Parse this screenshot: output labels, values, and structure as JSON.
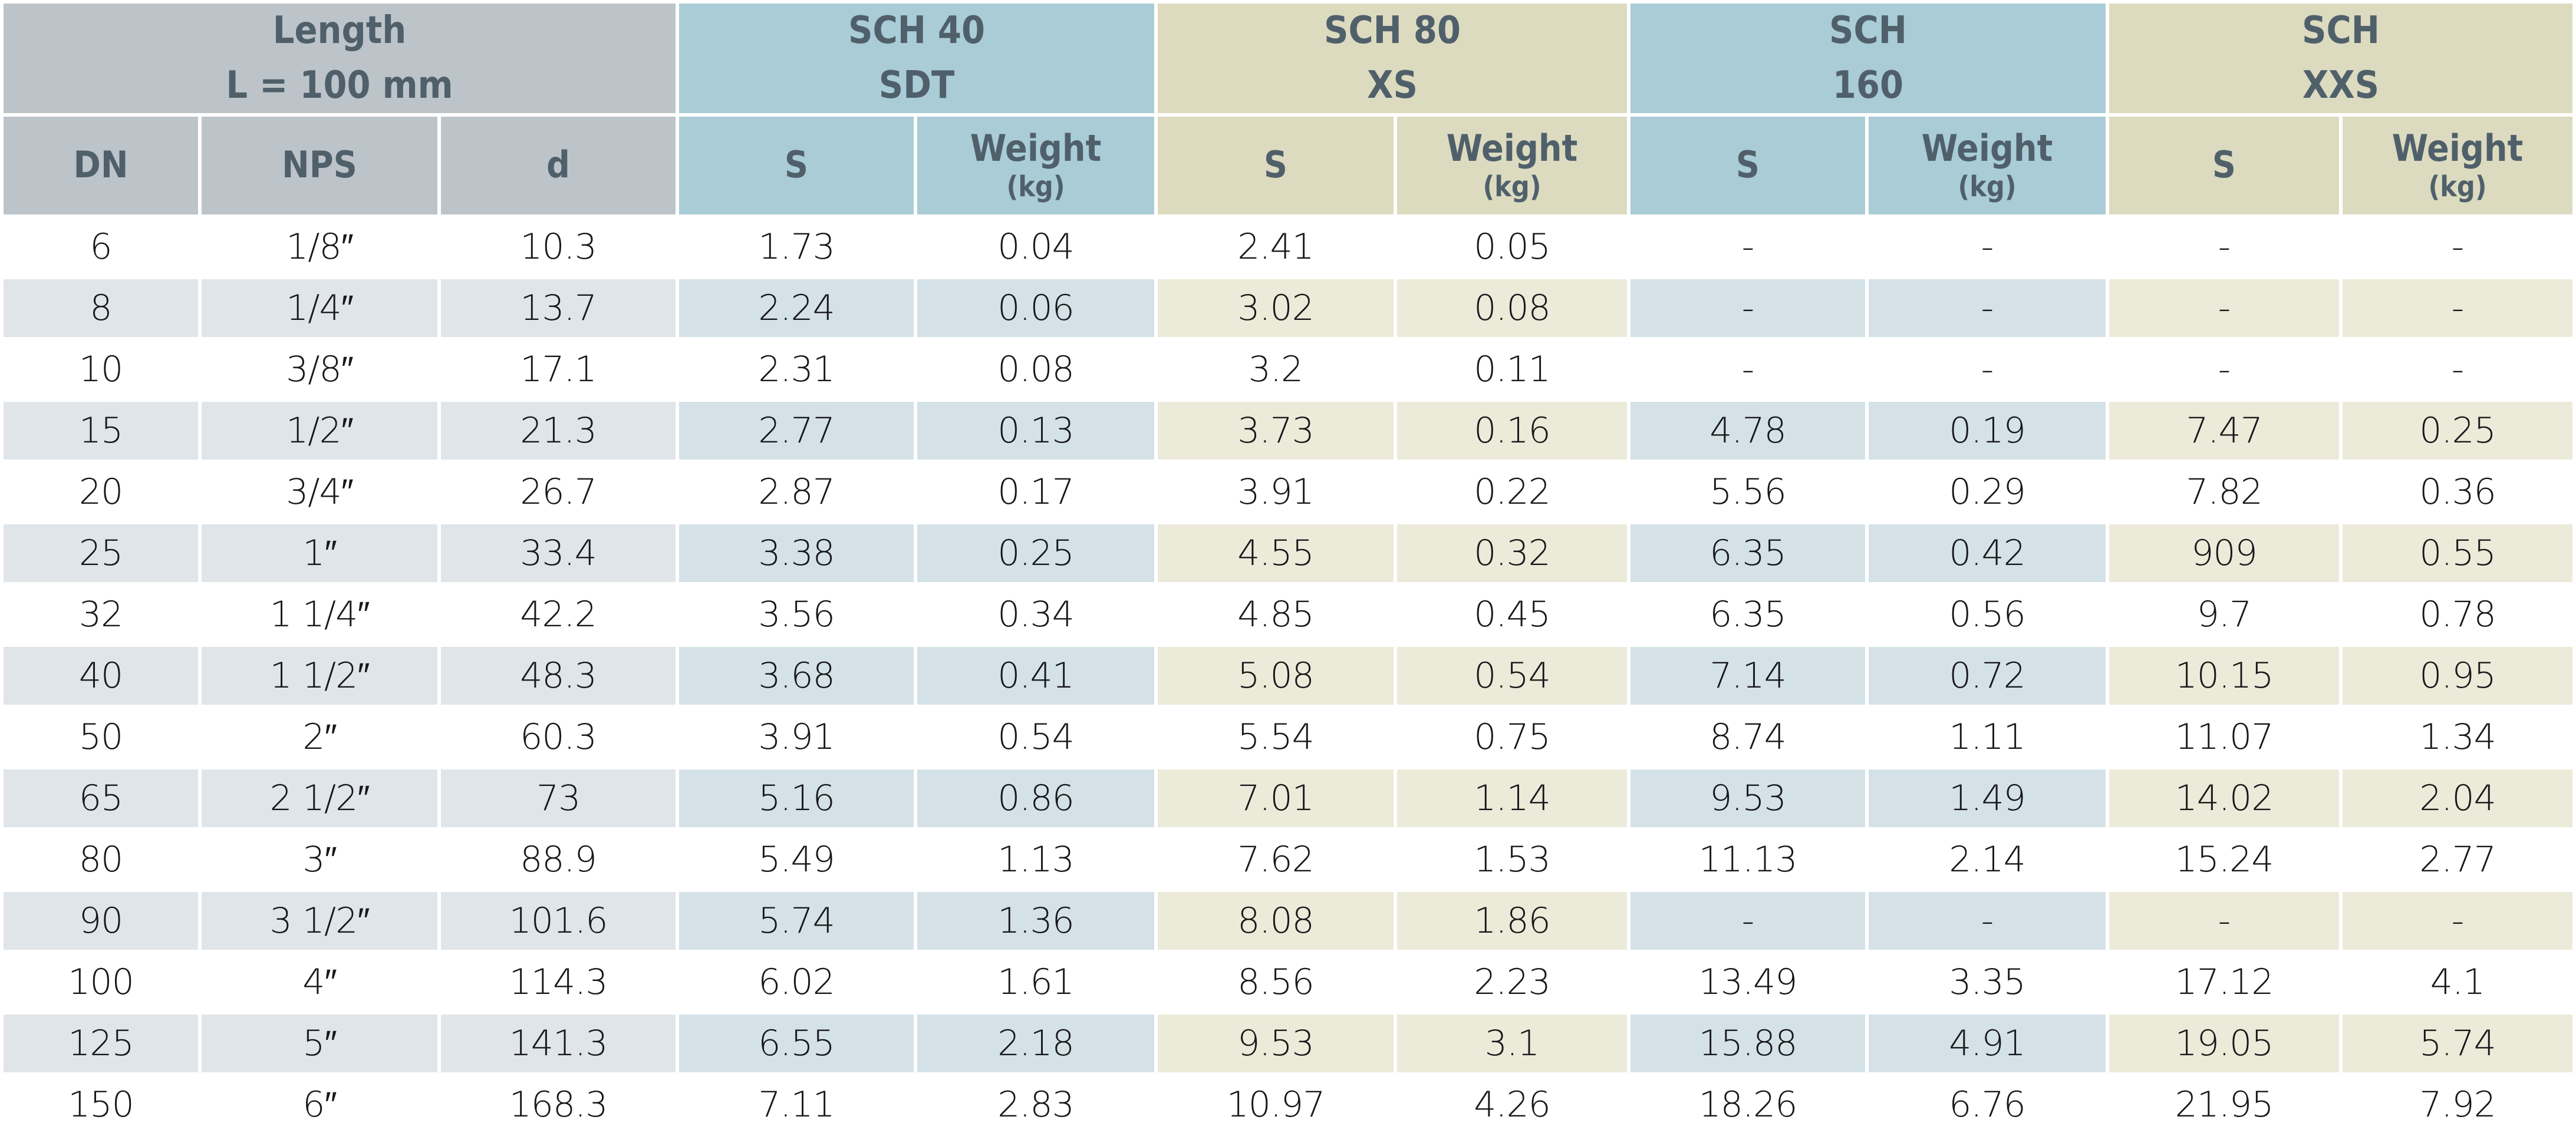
{
  "colors": {
    "header_gray": "#bcc4ca",
    "header_blue": "#a9ccd6",
    "header_tan": "#dcdbc0",
    "stripe_gray": "#e0e5e9",
    "stripe_blue": "#d4e2e8",
    "stripe_tan": "#ecead9",
    "header_text": "#50606b",
    "data_text": "#17181a",
    "background": "#ffffff"
  },
  "chart_data": {
    "type": "table",
    "title": "Pipe schedule dimensions and weights",
    "header": {
      "groups": [
        {
          "line1": "Length",
          "line2": "L = 100 mm",
          "span": 3
        },
        {
          "line1": "SCH 40",
          "line2": "SDT",
          "span": 2
        },
        {
          "line1": "SCH 80",
          "line2": "XS",
          "span": 2
        },
        {
          "line1": "SCH",
          "line2": "160",
          "span": 2
        },
        {
          "line1": "SCH",
          "line2": "XXS",
          "span": 2
        }
      ],
      "columns": [
        {
          "label": "DN"
        },
        {
          "label": "NPS"
        },
        {
          "label": "d"
        },
        {
          "label": "S"
        },
        {
          "label": "Weight",
          "unit": "(kg)"
        },
        {
          "label": "S"
        },
        {
          "label": "Weight",
          "unit": "(kg)"
        },
        {
          "label": "S"
        },
        {
          "label": "Weight",
          "unit": "(kg)"
        },
        {
          "label": "S"
        },
        {
          "label": "Weight",
          "unit": "(kg)"
        }
      ]
    },
    "rows": [
      [
        "6",
        "1/8″",
        "10.3",
        "1.73",
        "0.04",
        "2.41",
        "0.05",
        "-",
        "-",
        "-",
        "-"
      ],
      [
        "8",
        "1/4″",
        "13.7",
        "2.24",
        "0.06",
        "3.02",
        "0.08",
        "-",
        "-",
        "-",
        "-"
      ],
      [
        "10",
        "3/8″",
        "17.1",
        "2.31",
        "0.08",
        "3.2",
        "0.11",
        "-",
        "-",
        "-",
        "-"
      ],
      [
        "15",
        "1/2″",
        "21.3",
        "2.77",
        "0.13",
        "3.73",
        "0.16",
        "4.78",
        "0.19",
        "7.47",
        "0.25"
      ],
      [
        "20",
        "3/4″",
        "26.7",
        "2.87",
        "0.17",
        "3.91",
        "0.22",
        "5.56",
        "0.29",
        "7.82",
        "0.36"
      ],
      [
        "25",
        "1″",
        "33.4",
        "3.38",
        "0.25",
        "4.55",
        "0.32",
        "6.35",
        "0.42",
        "909",
        "0.55"
      ],
      [
        "32",
        "1 1/4″",
        "42.2",
        "3.56",
        "0.34",
        "4.85",
        "0.45",
        "6.35",
        "0.56",
        "9.7",
        "0.78"
      ],
      [
        "40",
        "1 1/2″",
        "48.3",
        "3.68",
        "0.41",
        "5.08",
        "0.54",
        "7.14",
        "0.72",
        "10.15",
        "0.95"
      ],
      [
        "50",
        "2″",
        "60.3",
        "3.91",
        "0.54",
        "5.54",
        "0.75",
        "8.74",
        "1.11",
        "11.07",
        "1.34"
      ],
      [
        "65",
        "2 1/2″",
        "73",
        "5.16",
        "0.86",
        "7.01",
        "1.14",
        "9.53",
        "1.49",
        "14.02",
        "2.04"
      ],
      [
        "80",
        "3″",
        "88.9",
        "5.49",
        "1.13",
        "7.62",
        "1.53",
        "11.13",
        "2.14",
        "15.24",
        "2.77"
      ],
      [
        "90",
        "3 1/2″",
        "101.6",
        "5.74",
        "1.36",
        "8.08",
        "1.86",
        "-",
        "-",
        "-",
        "-"
      ],
      [
        "100",
        "4″",
        "114.3",
        "6.02",
        "1.61",
        "8.56",
        "2.23",
        "13.49",
        "3.35",
        "17.12",
        "4.1"
      ],
      [
        "125",
        "5″",
        "141.3",
        "6.55",
        "2.18",
        "9.53",
        "3.1",
        "15.88",
        "4.91",
        "19.05",
        "5.74"
      ],
      [
        "150",
        "6″",
        "168.3",
        "7.11",
        "2.83",
        "10.97",
        "4.26",
        "18.26",
        "6.76",
        "21.95",
        "7.92"
      ]
    ]
  }
}
